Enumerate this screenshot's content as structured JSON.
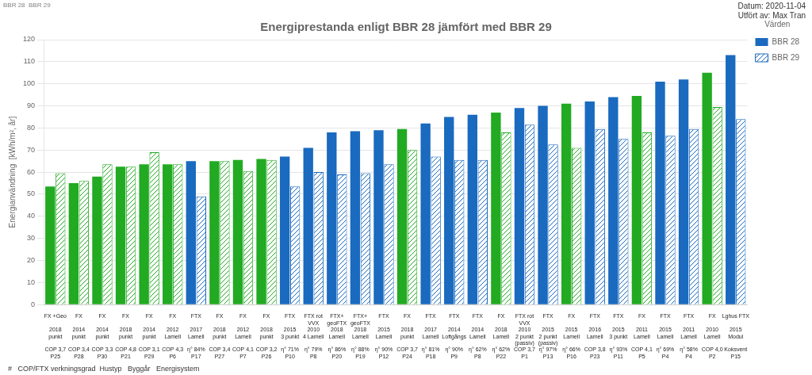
{
  "chart_data": {
    "type": "bar",
    "title": "Energiprestanda enligt BBR 28 jämfört med BBR 29",
    "ylabel": "Energianvändning  [kWh/m², år]",
    "annotations": [
      "Datum: 2020-11-04",
      "Utfört av: Max Tran",
      "BBR 28  BBR 29",
      "#   COP/FTX verkningsgrad  Hustyp   Byggår   Energisystem"
    ],
    "legend": "right",
    "legend_title": "Värden",
    "grid": true,
    "ylim": [
      0,
      120
    ],
    "yticks": [
      0,
      10,
      20,
      30,
      40,
      50,
      60,
      70,
      80,
      90,
      100,
      110,
      120
    ],
    "categories": [
      [
        "FX +Geo",
        "2018",
        "punkt",
        "COP 3,7",
        "P25"
      ],
      [
        "FX",
        "2014",
        "punkt",
        "COP 3,4",
        "P28"
      ],
      [
        "FX",
        "2014",
        "punkt",
        "COP 3,3",
        "P30"
      ],
      [
        "FX",
        "2018",
        "punkt",
        "COP 4,8",
        "P21"
      ],
      [
        "FX",
        "2014",
        "punkt",
        "COP 3,1",
        "P29"
      ],
      [
        "FX",
        "2012",
        "Lamell",
        "COP 4,3",
        "P6"
      ],
      [
        "FTX",
        "2017",
        "Lamell",
        "η° 84%",
        "P17"
      ],
      [
        "FX",
        "2018",
        "punkt",
        "COP 3,4",
        "P27"
      ],
      [
        "FX",
        "2012",
        "Lamell",
        "COP 4,1",
        "P7"
      ],
      [
        "FX",
        "2018",
        "punkt",
        "COP 3,2",
        "P26"
      ],
      [
        "FTX",
        "2015",
        "3 punkt",
        "η° 71%",
        "P10"
      ],
      [
        "FTX rot\nVVX",
        "2010",
        "4 Lamell",
        "η° 79%",
        "P8"
      ],
      [
        "FTX+\ngeoFTX",
        "2018",
        "Lamell",
        "η° 86%",
        "P20"
      ],
      [
        "FTX+\ngeoFTX",
        "2018",
        "Lamell",
        "η° 88%",
        "P19"
      ],
      [
        "FTX",
        "2015",
        "Lamell",
        "η° 90%",
        "P12"
      ],
      [
        "FX",
        "2018",
        "punkt",
        "COP 3,7",
        "P24"
      ],
      [
        "FTX",
        "2017",
        "Lamell",
        "η° 81%",
        "P18"
      ],
      [
        "FTX",
        "2014",
        "Loftgångs",
        "η° 90%",
        "P9"
      ],
      [
        "FTX",
        "2014",
        "Lamell",
        "η° 62%",
        "P8"
      ],
      [
        "FX",
        "2018",
        "Lamell",
        "η° 62%",
        "P22"
      ],
      [
        "FTX rot\nVVX",
        "2010",
        "2 punkt\n(passiv)",
        "COP 3,7",
        "P1"
      ],
      [
        "FTX",
        "2015",
        "2 punkt\n(passiv)",
        "η° 97%",
        "P13"
      ],
      [
        "FX",
        "2015",
        "Lamell",
        "η° 66%",
        "P16"
      ],
      [
        "FTX",
        "2016",
        "Lamell",
        "COP 3,8",
        "P23"
      ],
      [
        "FTX",
        "2015",
        "3 punkt",
        "η° 93%",
        "P11"
      ],
      [
        "FX",
        "2011",
        "Lamell",
        "COP 4,1",
        "P5"
      ],
      [
        "FTX",
        "2015",
        "Lamell",
        "η° 69%",
        "P4"
      ],
      [
        "FTX",
        "2011",
        "Lamell",
        "η° 58%",
        "P4"
      ],
      [
        "FX",
        "2010",
        "Lamell",
        "COP 4,0",
        "P2"
      ],
      [
        "Lghus FTX",
        "2015",
        "Modul",
        "Koksvent",
        "P15"
      ]
    ],
    "series": [
      {
        "name": "BBR 28",
        "color": "#1a6abf",
        "values": [
          53.5,
          55.0,
          58.0,
          62.5,
          63.5,
          63.5,
          65.0,
          65.0,
          65.5,
          66.0,
          67.0,
          71.0,
          78.0,
          78.5,
          79.0,
          79.5,
          82.0,
          85.0,
          86.0,
          87.0,
          89.0,
          90.0,
          91.0,
          92.0,
          94.0,
          94.5,
          101.0,
          102.0,
          105.0,
          113.0
        ],
        "colors": [
          "#22aa22",
          "#22aa22",
          "#22aa22",
          "#22aa22",
          "#22aa22",
          "#22aa22",
          "#1a6abf",
          "#22aa22",
          "#22aa22",
          "#22aa22",
          "#1a6abf",
          "#1a6abf",
          "#1a6abf",
          "#1a6abf",
          "#1a6abf",
          "#22aa22",
          "#1a6abf",
          "#1a6abf",
          "#1a6abf",
          "#22aa22",
          "#1a6abf",
          "#1a6abf",
          "#22aa22",
          "#1a6abf",
          "#1a6abf",
          "#22aa22",
          "#1a6abf",
          "#1a6abf",
          "#22aa22",
          "#1a6abf"
        ]
      },
      {
        "name": "BBR 29",
        "color": "#1a6abf",
        "values": [
          59.5,
          56.0,
          63.5,
          62.5,
          69.0,
          63.5,
          49.0,
          65.0,
          60.5,
          65.5,
          53.5,
          60.0,
          59.0,
          59.5,
          63.5,
          70.0,
          67.0,
          65.5,
          65.5,
          78.0,
          81.5,
          72.5,
          71.0,
          79.5,
          75.0,
          78.0,
          76.5,
          79.5,
          89.5,
          84.0
        ],
        "colors": [
          "#22aa22",
          "#22aa22",
          "#22aa22",
          "#22aa22",
          "#22aa22",
          "#22aa22",
          "#1a6abf",
          "#22aa22",
          "#22aa22",
          "#22aa22",
          "#1a6abf",
          "#1a6abf",
          "#1a6abf",
          "#1a6abf",
          "#1a6abf",
          "#22aa22",
          "#1a6abf",
          "#1a6abf",
          "#1a6abf",
          "#22aa22",
          "#1a6abf",
          "#1a6abf",
          "#22aa22",
          "#1a6abf",
          "#1a6abf",
          "#22aa22",
          "#1a6abf",
          "#1a6abf",
          "#22aa22",
          "#1a6abf"
        ]
      }
    ]
  }
}
